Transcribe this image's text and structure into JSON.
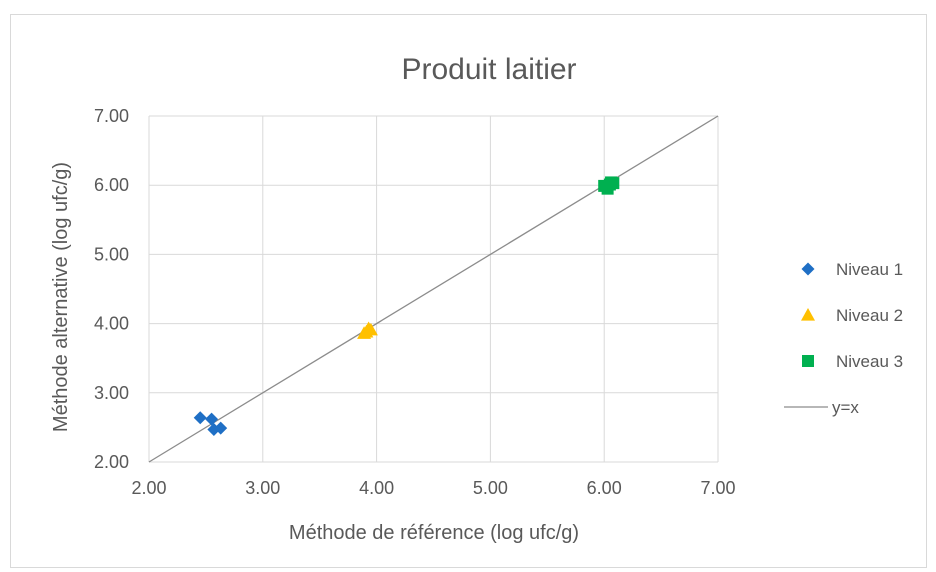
{
  "chart_data": {
    "type": "scatter",
    "title": "Produit laitier",
    "xlabel": "Méthode de référence (log ufc/g)",
    "ylabel": "Méthode alternative (log ufc/g)",
    "xlim": [
      2.0,
      7.0
    ],
    "ylim": [
      2.0,
      7.0
    ],
    "x_ticks": [
      "2.00",
      "3.00",
      "4.00",
      "5.00",
      "6.00",
      "7.00"
    ],
    "y_ticks": [
      "2.00",
      "3.00",
      "4.00",
      "5.00",
      "6.00",
      "7.00"
    ],
    "grid": true,
    "legend_position": "right",
    "series": [
      {
        "name": "Niveau 1",
        "marker": "diamond",
        "color": "#1f6fc5",
        "points": [
          [
            2.45,
            2.64
          ],
          [
            2.55,
            2.62
          ],
          [
            2.57,
            2.47
          ],
          [
            2.63,
            2.49
          ]
        ]
      },
      {
        "name": "Niveau 2",
        "marker": "triangle",
        "color": "#ffc000",
        "points": [
          [
            3.89,
            3.86
          ],
          [
            3.91,
            3.88
          ],
          [
            3.93,
            3.93
          ],
          [
            3.95,
            3.91
          ]
        ]
      },
      {
        "name": "Niveau 3",
        "marker": "square",
        "color": "#00b050",
        "points": [
          [
            6.0,
            5.99
          ],
          [
            6.03,
            5.95
          ],
          [
            6.05,
            6.01
          ],
          [
            6.08,
            6.03
          ],
          [
            6.06,
            6.04
          ]
        ]
      }
    ],
    "reference_line": {
      "name": "y=x",
      "color": "#8c8c8c",
      "from": [
        2.0,
        2.0
      ],
      "to": [
        7.0,
        7.0
      ]
    }
  }
}
